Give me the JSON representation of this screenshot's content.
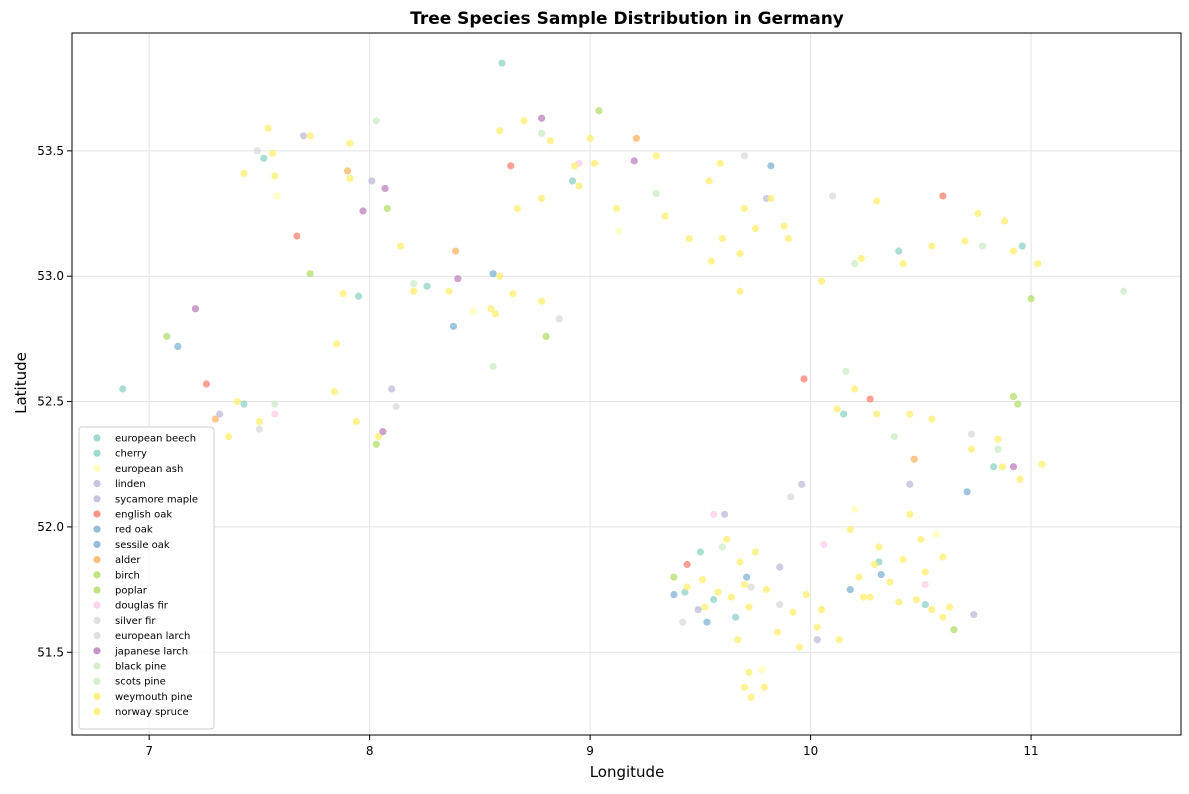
{
  "chart_data": {
    "type": "scatter",
    "title": "Tree Species Sample Distribution in Germany",
    "xlabel": "Longitude",
    "ylabel": "Latitude",
    "xlim": [
      6.65,
      11.68
    ],
    "ylim": [
      51.17,
      53.97
    ],
    "xticks": [
      7,
      8,
      9,
      10,
      11
    ],
    "yticks": [
      51.5,
      52.0,
      52.5,
      53.0,
      53.5
    ],
    "xtick_labels": [
      "7",
      "8",
      "9",
      "10",
      "11"
    ],
    "ytick_labels": [
      "51.5",
      "52.0",
      "52.5",
      "53.0",
      "53.5"
    ],
    "grid": true,
    "legend_position": "lower-left",
    "series": [
      {
        "name": "european beech",
        "color": "#8dd3c7",
        "points": [
          [
            7.43,
            52.49
          ],
          [
            7.52,
            53.47
          ],
          [
            7.95,
            52.92
          ],
          [
            9.5,
            51.9
          ],
          [
            9.56,
            51.71
          ],
          [
            10.31,
            51.86
          ],
          [
            10.52,
            51.69
          ],
          [
            10.96,
            53.12
          ],
          [
            10.15,
            52.45
          ],
          [
            8.26,
            52.96
          ]
        ]
      },
      {
        "name": "cherry",
        "color": "#8dd3c7",
        "points": [
          [
            6.88,
            52.55
          ],
          [
            8.6,
            53.85
          ],
          [
            9.43,
            51.74
          ],
          [
            9.66,
            51.64
          ],
          [
            10.83,
            52.24
          ],
          [
            10.4,
            53.1
          ],
          [
            8.92,
            53.38
          ]
        ]
      },
      {
        "name": "european ash",
        "color": "#ffffb3",
        "points": [
          [
            7.58,
            53.32
          ],
          [
            8.47,
            52.86
          ],
          [
            9.13,
            53.18
          ],
          [
            9.78,
            51.43
          ],
          [
            10.2,
            52.07
          ],
          [
            10.57,
            51.97
          ]
        ]
      },
      {
        "name": "linden",
        "color": "#bebada",
        "points": [
          [
            7.32,
            52.45
          ],
          [
            8.1,
            52.55
          ],
          [
            9.61,
            52.05
          ],
          [
            9.96,
            52.17
          ],
          [
            10.45,
            52.17
          ],
          [
            9.8,
            53.31
          ]
        ]
      },
      {
        "name": "sycamore maple",
        "color": "#bebada",
        "points": [
          [
            7.7,
            53.56
          ],
          [
            8.01,
            53.38
          ],
          [
            9.49,
            51.67
          ],
          [
            9.86,
            51.84
          ],
          [
            10.74,
            51.65
          ],
          [
            10.03,
            51.55
          ]
        ]
      },
      {
        "name": "english oak",
        "color": "#fb8072",
        "points": [
          [
            7.26,
            52.57
          ],
          [
            7.67,
            53.16
          ],
          [
            8.64,
            53.44
          ],
          [
            9.97,
            52.59
          ],
          [
            10.6,
            53.32
          ],
          [
            10.27,
            52.51
          ],
          [
            9.44,
            51.85
          ]
        ]
      },
      {
        "name": "red oak",
        "color": "#80b1d3",
        "points": [
          [
            8.56,
            53.01
          ],
          [
            9.38,
            51.73
          ],
          [
            9.71,
            51.8
          ],
          [
            10.32,
            51.81
          ],
          [
            9.82,
            53.44
          ]
        ]
      },
      {
        "name": "sessile oak",
        "color": "#80b1d3",
        "points": [
          [
            7.13,
            52.72
          ],
          [
            8.38,
            52.8
          ],
          [
            9.53,
            51.62
          ],
          [
            10.18,
            51.75
          ],
          [
            10.71,
            52.14
          ]
        ]
      },
      {
        "name": "alder",
        "color": "#fdb462",
        "points": [
          [
            7.3,
            52.43
          ],
          [
            7.9,
            53.42
          ],
          [
            8.39,
            53.1
          ],
          [
            9.21,
            53.55
          ],
          [
            10.47,
            52.27
          ]
        ]
      },
      {
        "name": "birch",
        "color": "#b3de69",
        "points": [
          [
            7.08,
            52.76
          ],
          [
            7.73,
            53.01
          ],
          [
            8.08,
            53.27
          ],
          [
            8.8,
            52.76
          ],
          [
            10.92,
            52.52
          ],
          [
            11.0,
            52.91
          ]
        ]
      },
      {
        "name": "poplar",
        "color": "#b3de69",
        "points": [
          [
            8.03,
            52.33
          ],
          [
            9.04,
            53.66
          ],
          [
            9.38,
            51.8
          ],
          [
            10.65,
            51.59
          ],
          [
            10.94,
            52.49
          ]
        ]
      },
      {
        "name": "douglas fir",
        "color": "#fccde5",
        "points": [
          [
            7.57,
            52.45
          ],
          [
            9.56,
            52.05
          ],
          [
            10.06,
            51.93
          ],
          [
            10.52,
            51.77
          ],
          [
            8.95,
            53.45
          ]
        ]
      },
      {
        "name": "silver fir",
        "color": "#d9d9d9",
        "points": [
          [
            7.5,
            52.39
          ],
          [
            8.86,
            52.83
          ],
          [
            9.73,
            51.76
          ],
          [
            9.86,
            51.69
          ],
          [
            9.7,
            53.48
          ]
        ]
      },
      {
        "name": "european larch",
        "color": "#d9d9d9",
        "points": [
          [
            7.49,
            53.5
          ],
          [
            8.12,
            52.48
          ],
          [
            9.42,
            51.62
          ],
          [
            9.91,
            52.12
          ],
          [
            10.73,
            52.37
          ],
          [
            10.1,
            53.32
          ]
        ]
      },
      {
        "name": "japanese larch",
        "color": "#bc80bd",
        "points": [
          [
            7.21,
            52.87
          ],
          [
            7.97,
            53.26
          ],
          [
            8.07,
            53.35
          ],
          [
            8.06,
            52.38
          ],
          [
            8.4,
            52.99
          ],
          [
            9.2,
            53.46
          ],
          [
            10.92,
            52.24
          ],
          [
            8.78,
            53.63
          ]
        ]
      },
      {
        "name": "black pine",
        "color": "#ccebc5",
        "points": [
          [
            7.57,
            52.49
          ],
          [
            8.56,
            52.64
          ],
          [
            9.3,
            53.33
          ],
          [
            10.38,
            52.36
          ],
          [
            10.85,
            52.31
          ]
        ]
      },
      {
        "name": "scots pine",
        "color": "#ccebc5",
        "points": [
          [
            8.03,
            53.62
          ],
          [
            8.2,
            52.97
          ],
          [
            10.2,
            53.05
          ],
          [
            10.78,
            53.12
          ],
          [
            11.42,
            52.94
          ],
          [
            10.16,
            52.62
          ],
          [
            9.6,
            51.92
          ],
          [
            8.78,
            53.57
          ]
        ]
      },
      {
        "name": "weymouth pine",
        "color": "#ffed6f",
        "points": [
          [
            7.43,
            53.41
          ],
          [
            7.84,
            52.54
          ],
          [
            8.57,
            52.85
          ],
          [
            9.6,
            53.15
          ],
          [
            10.24,
            51.72
          ],
          [
            9.79,
            51.36
          ]
        ]
      },
      {
        "name": "norway spruce",
        "color": "#ffed6f",
        "points": [
          [
            7.54,
            53.59
          ],
          [
            7.56,
            53.49
          ],
          [
            7.73,
            53.56
          ],
          [
            7.91,
            53.53
          ],
          [
            7.91,
            53.39
          ],
          [
            7.57,
            53.4
          ],
          [
            7.88,
            52.93
          ],
          [
            8.2,
            52.94
          ],
          [
            8.14,
            53.12
          ],
          [
            8.55,
            52.87
          ],
          [
            8.65,
            52.93
          ],
          [
            8.78,
            52.9
          ],
          [
            8.59,
            53.0
          ],
          [
            8.36,
            52.94
          ],
          [
            7.85,
            52.73
          ],
          [
            8.04,
            52.36
          ],
          [
            7.94,
            52.42
          ],
          [
            7.36,
            52.36
          ],
          [
            7.4,
            52.5
          ],
          [
            7.5,
            52.42
          ],
          [
            8.7,
            53.62
          ],
          [
            8.82,
            53.54
          ],
          [
            8.93,
            53.44
          ],
          [
            8.67,
            53.27
          ],
          [
            8.78,
            53.31
          ],
          [
            8.95,
            53.36
          ],
          [
            8.59,
            53.58
          ],
          [
            9.45,
            53.15
          ],
          [
            9.34,
            53.24
          ],
          [
            9.55,
            53.06
          ],
          [
            9.68,
            53.09
          ],
          [
            9.68,
            52.94
          ],
          [
            9.54,
            53.38
          ],
          [
            9.59,
            53.45
          ],
          [
            9.7,
            53.27
          ],
          [
            9.75,
            53.19
          ],
          [
            9.82,
            53.31
          ],
          [
            9.9,
            53.15
          ],
          [
            9.88,
            53.2
          ],
          [
            10.23,
            53.07
          ],
          [
            10.05,
            52.98
          ],
          [
            10.42,
            53.05
          ],
          [
            10.76,
            53.25
          ],
          [
            10.88,
            53.22
          ],
          [
            10.7,
            53.14
          ],
          [
            10.92,
            53.1
          ],
          [
            11.03,
            53.05
          ],
          [
            10.3,
            53.3
          ],
          [
            10.55,
            53.12
          ],
          [
            9.58,
            51.74
          ],
          [
            9.51,
            51.79
          ],
          [
            9.64,
            51.72
          ],
          [
            9.7,
            51.77
          ],
          [
            9.72,
            51.68
          ],
          [
            9.52,
            51.68
          ],
          [
            9.44,
            51.76
          ],
          [
            9.68,
            51.86
          ],
          [
            9.62,
            51.95
          ],
          [
            9.75,
            51.9
          ],
          [
            9.8,
            51.75
          ],
          [
            9.67,
            51.55
          ],
          [
            9.72,
            51.42
          ],
          [
            9.73,
            51.32
          ],
          [
            9.7,
            51.36
          ],
          [
            9.85,
            51.58
          ],
          [
            9.92,
            51.66
          ],
          [
            9.95,
            51.52
          ],
          [
            10.29,
            51.85
          ],
          [
            10.36,
            51.78
          ],
          [
            10.42,
            51.87
          ],
          [
            10.48,
            51.71
          ],
          [
            10.55,
            51.67
          ],
          [
            10.6,
            51.64
          ],
          [
            10.63,
            51.68
          ],
          [
            10.4,
            51.7
          ],
          [
            10.31,
            51.92
          ],
          [
            10.22,
            51.8
          ],
          [
            10.27,
            51.72
          ],
          [
            10.52,
            51.82
          ],
          [
            10.45,
            52.05
          ],
          [
            10.18,
            51.99
          ],
          [
            10.05,
            51.67
          ],
          [
            10.03,
            51.6
          ],
          [
            10.13,
            51.55
          ],
          [
            9.98,
            51.73
          ],
          [
            10.5,
            51.95
          ],
          [
            10.6,
            51.88
          ],
          [
            10.85,
            52.35
          ],
          [
            10.73,
            52.31
          ],
          [
            10.87,
            52.24
          ],
          [
            10.55,
            52.43
          ],
          [
            10.45,
            52.45
          ],
          [
            10.95,
            52.19
          ],
          [
            11.05,
            52.25
          ],
          [
            10.2,
            52.55
          ],
          [
            10.12,
            52.47
          ],
          [
            10.3,
            52.45
          ],
          [
            9.3,
            53.48
          ],
          [
            9.12,
            53.27
          ],
          [
            9.0,
            53.55
          ],
          [
            9.02,
            53.45
          ]
        ]
      }
    ]
  }
}
